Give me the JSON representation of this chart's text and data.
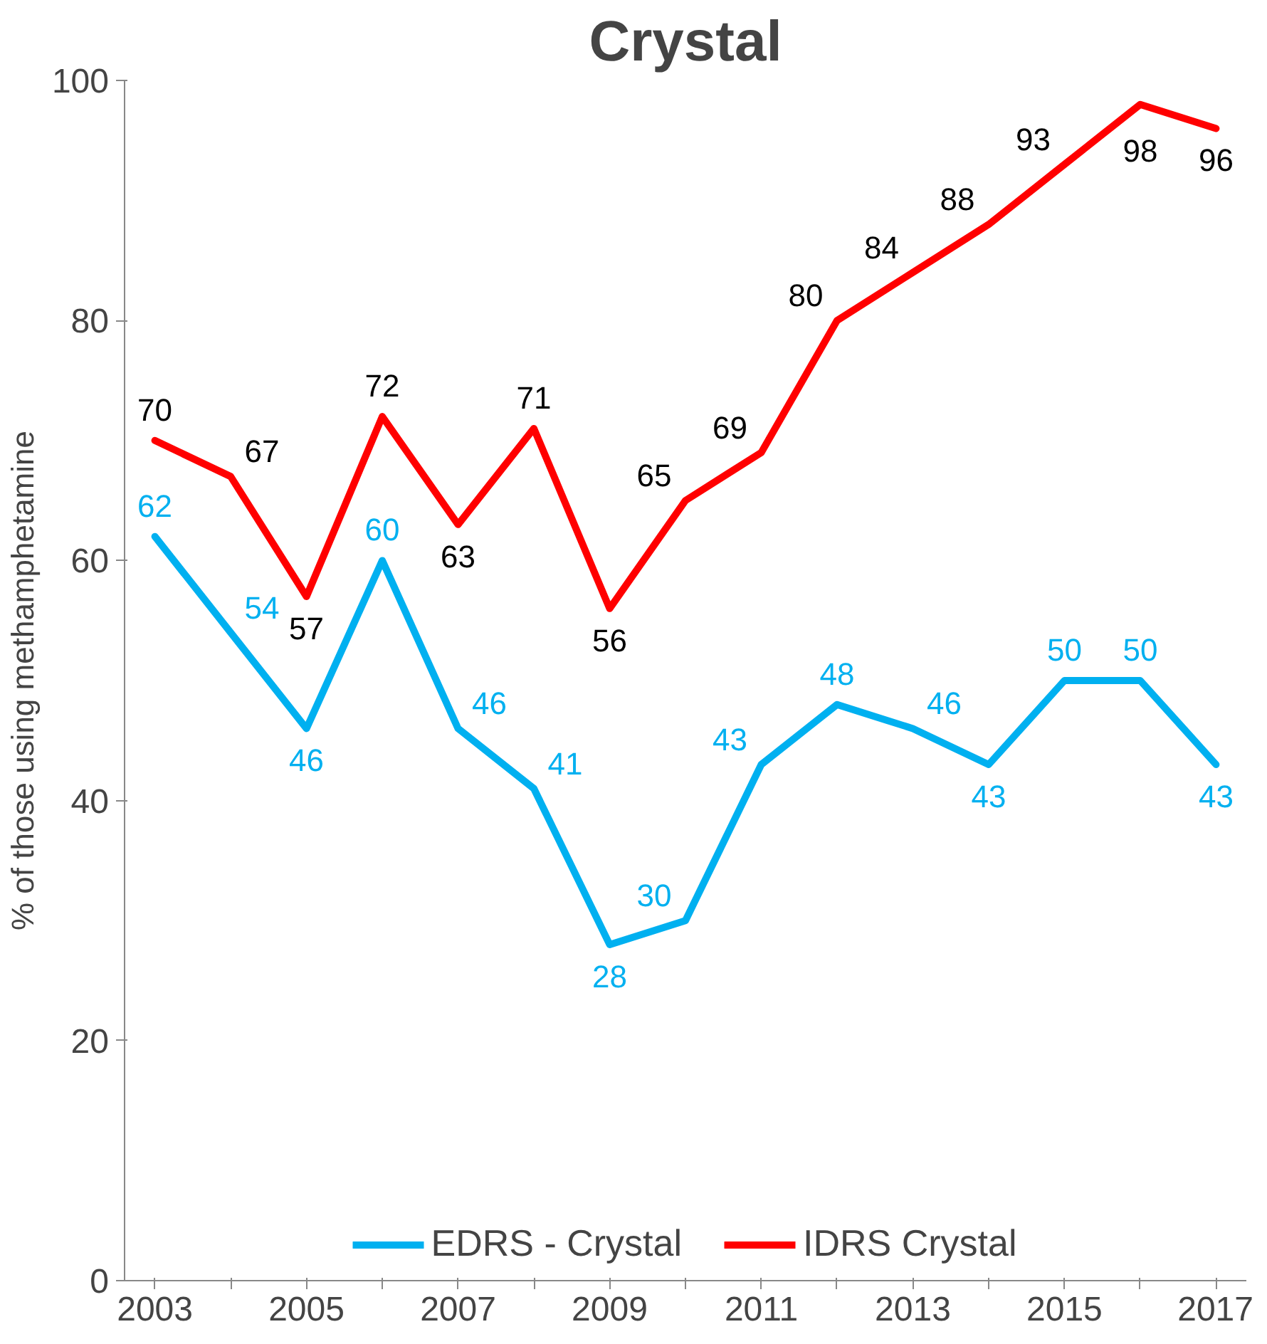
{
  "chart_data": {
    "type": "line",
    "title": "Crystal",
    "ylabel": "% of those using methamphetamine",
    "categories": [
      "2003",
      null,
      "2005",
      null,
      "2007",
      null,
      "2009",
      null,
      "2011",
      null,
      "2013",
      null,
      "2015",
      null,
      "2017"
    ],
    "series": [
      {
        "name": "EDRS - Crystal",
        "color": "#00b0f0",
        "values": [
          62,
          54,
          46,
          60,
          46,
          41,
          28,
          30,
          43,
          48,
          46,
          43,
          50,
          50,
          43
        ]
      },
      {
        "name": "IDRS Crystal",
        "color": "#ff0000",
        "values": [
          70,
          67,
          57,
          72,
          63,
          71,
          56,
          65,
          69,
          80,
          84,
          88,
          93,
          98,
          96
        ]
      }
    ],
    "ylim": [
      0,
      100
    ],
    "yticks": [
      0,
      20,
      40,
      60,
      80,
      100
    ],
    "grid": false,
    "legend": "bottom",
    "data_labels": true,
    "marker": "none",
    "line_style": "solid"
  }
}
